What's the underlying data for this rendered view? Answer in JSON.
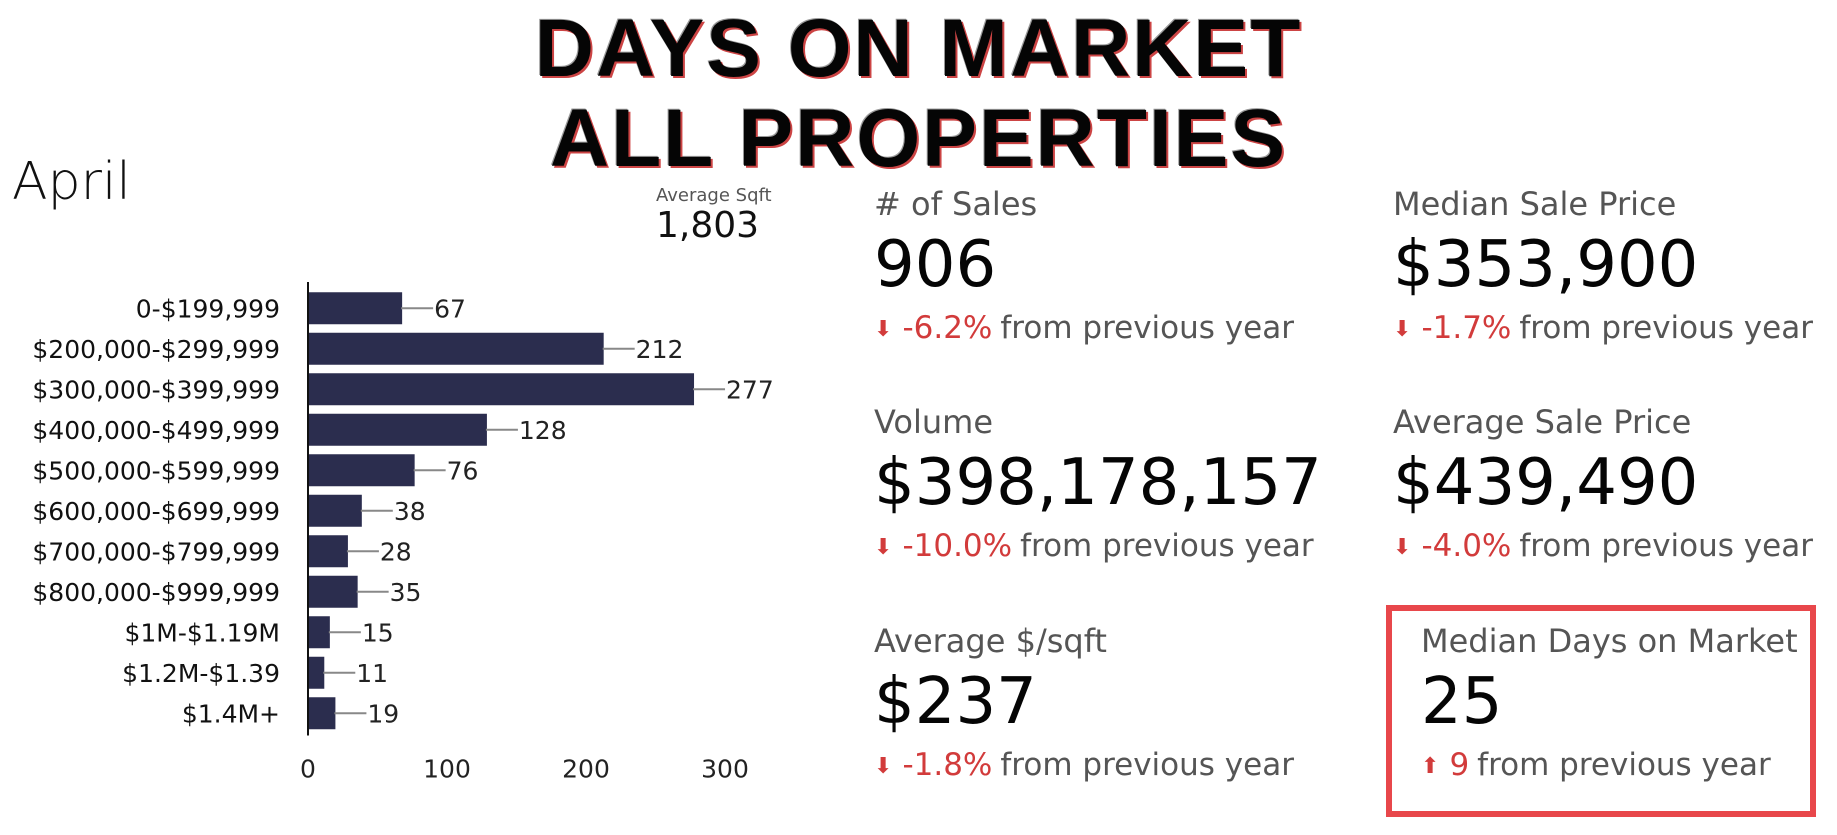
{
  "header": {
    "title_line1": "DAYS ON MARKET",
    "title_line2": "ALL PROPERTIES",
    "month": "April"
  },
  "average_sqft": {
    "label": "Average Sqft",
    "value": "1,803"
  },
  "stats": {
    "sales": {
      "label": "# of Sales",
      "value": "906",
      "arrow": "down",
      "delta": "-6.2%",
      "suffix": "from previous year"
    },
    "median_price": {
      "label": "Median Sale Price",
      "value": "$353,900",
      "arrow": "down",
      "delta": "-1.7%",
      "suffix": "from previous year"
    },
    "volume": {
      "label": "Volume",
      "value": "$398,178,157",
      "arrow": "down",
      "delta": "-10.0%",
      "suffix": "from previous year"
    },
    "average_price": {
      "label": "Average Sale Price",
      "value": "$439,490",
      "arrow": "down",
      "delta": "-4.0%",
      "suffix": "from previous year"
    },
    "avg_per_sqft": {
      "label": "Average $/sqft",
      "value": "$237",
      "arrow": "down",
      "delta": "-1.8%",
      "suffix": "from previous year"
    },
    "median_dom": {
      "label": "Median Days on Market",
      "value": "25",
      "arrow": "up",
      "delta": "9",
      "suffix": "from previous year"
    }
  },
  "colors": {
    "bar": "#2b2d4e",
    "down": "#d23b3b",
    "highlight": "#e8474b"
  },
  "chart_data": {
    "type": "bar",
    "orientation": "horizontal",
    "categories": [
      "0-$199,999",
      "$200,000-$299,999",
      "$300,000-$399,999",
      "$400,000-$499,999",
      "$500,000-$599,999",
      "$600,000-$699,999",
      "$700,000-$799,999",
      "$800,000-$999,999",
      "$1M-$1.19M",
      "$1.2M-$1.39",
      "$1.4M+"
    ],
    "values": [
      67,
      212,
      277,
      128,
      76,
      38,
      28,
      35,
      15,
      11,
      19
    ],
    "xticks": [
      0,
      100,
      200,
      300
    ],
    "xlim": [
      0,
      300
    ],
    "grid": false,
    "title": "",
    "xlabel": "",
    "ylabel": ""
  }
}
